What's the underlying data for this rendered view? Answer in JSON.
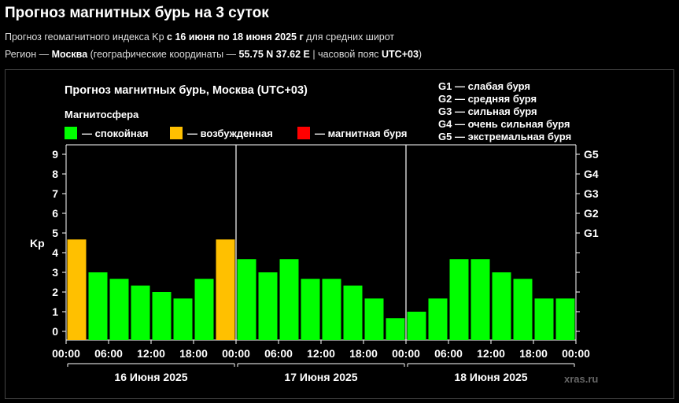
{
  "header": {
    "title": "Прогноз магнитных бурь на 3 суток",
    "line1_pre": "Прогноз геомагнитного индекса Kp ",
    "line1_bold": "с 16 июня по 18 июня 2025 г",
    "line1_post": " для средних широт",
    "line2_pre": "Регион — ",
    "line2_region": "Москва",
    "line2_mid": " (географические координаты — ",
    "line2_coords": "55.75 N 37.62 E",
    "line2_mid2": " | часовой пояс ",
    "line2_tz": "UTC+03",
    "line2_post": ")"
  },
  "chart_data": {
    "type": "bar",
    "title": "Прогноз магнитных бурь, Москва (UTC+03)",
    "ylabel": "Kp",
    "ylim": [
      0,
      9
    ],
    "yticks": [
      "0",
      "1",
      "2",
      "3",
      "4",
      "5",
      "6",
      "7",
      "8",
      "9"
    ],
    "g_scale": [
      "G1",
      "G2",
      "G3",
      "G4",
      "G5"
    ],
    "x_ticks": [
      "00:00",
      "06:00",
      "12:00",
      "18:00",
      "00:00",
      "06:00",
      "12:00",
      "18:00",
      "00:00",
      "06:00",
      "12:00",
      "18:00",
      "00:00"
    ],
    "days": [
      "16 Июня 2025",
      "17 Июня 2025",
      "18 Июня 2025"
    ],
    "values": [
      4.67,
      3.0,
      2.67,
      2.33,
      2.0,
      1.67,
      2.67,
      4.67,
      3.67,
      3.0,
      3.67,
      2.67,
      2.67,
      2.33,
      1.67,
      0.67,
      1.0,
      1.67,
      3.67,
      3.67,
      3.0,
      2.67,
      1.67,
      1.67
    ],
    "status": [
      "active",
      "quiet",
      "quiet",
      "quiet",
      "quiet",
      "quiet",
      "quiet",
      "active",
      "quiet",
      "quiet",
      "quiet",
      "quiet",
      "quiet",
      "quiet",
      "quiet",
      "quiet",
      "quiet",
      "quiet",
      "quiet",
      "quiet",
      "quiet",
      "quiet",
      "quiet",
      "quiet"
    ],
    "legend_title": "Магнитосфера",
    "legend": [
      {
        "key": "quiet",
        "label": "— спокойная",
        "color": "#00ff00"
      },
      {
        "key": "active",
        "label": "— возбужденная",
        "color": "#ffc000"
      },
      {
        "key": "storm",
        "label": "— магнитная буря",
        "color": "#ff0000"
      }
    ],
    "g_legend": [
      "G1 — слабая буря",
      "G2 — средняя буря",
      "G3 — сильная буря",
      "G4 — очень сильная буря",
      "G5 — экстремальная буря"
    ]
  },
  "watermark": "xras.ru"
}
